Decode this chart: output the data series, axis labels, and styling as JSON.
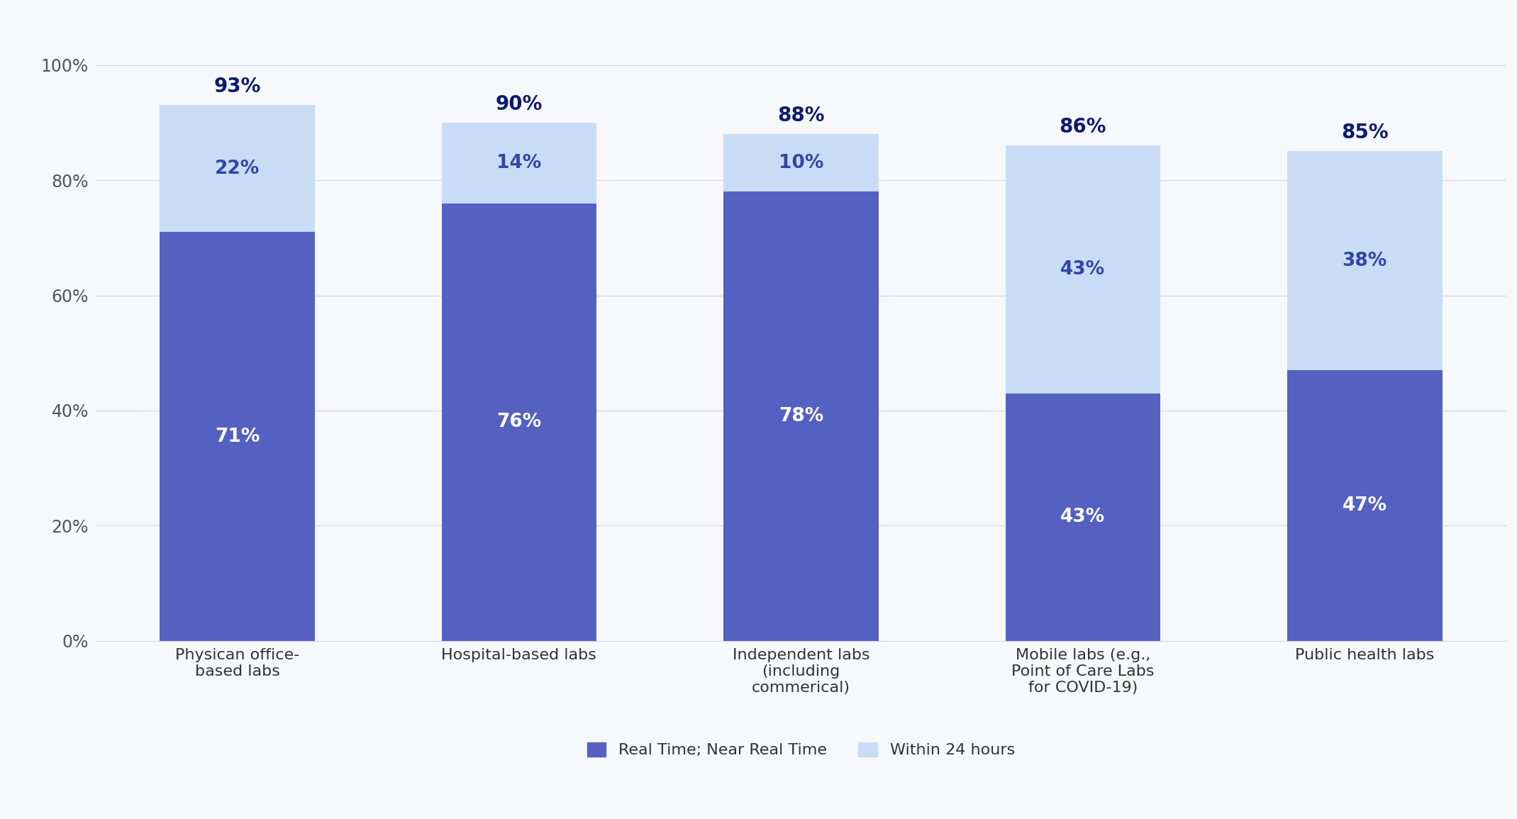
{
  "categories": [
    "Physican office-\nbased labs",
    "Hospital-based labs",
    "Independent labs\n(including\ncommerical)",
    "Mobile labs (e.g.,\nPoint of Care Labs\nfor COVID-19)",
    "Public health labs"
  ],
  "real_time_values": [
    71,
    76,
    78,
    43,
    47
  ],
  "within_24h_values": [
    22,
    14,
    10,
    43,
    38
  ],
  "totals": [
    93,
    90,
    88,
    86,
    85
  ],
  "color_real_time": "#5561c0",
  "color_within_24h": "#c8dcf5",
  "background_color": "#f7f8fc",
  "legend_real_time": "Real Time; Near Real Time",
  "legend_within_24h": "Within 24 hours",
  "ylim": [
    0,
    100
  ],
  "yticks": [
    0,
    20,
    40,
    60,
    80,
    100
  ],
  "ytick_labels": [
    "0%",
    "20%",
    "40%",
    "60%",
    "80%",
    "100%"
  ],
  "bar_width": 0.55,
  "total_label_color": "#0d1a6e",
  "segment_label_color_dark": "#ffffff",
  "segment_label_color_light": "#3344aa",
  "total_fontsize": 20,
  "segment_fontsize": 19,
  "tick_fontsize": 17,
  "legend_fontsize": 16,
  "xtick_fontsize": 16,
  "grid_color": "#d8d8e8",
  "spine_color": "#d8d8e8"
}
